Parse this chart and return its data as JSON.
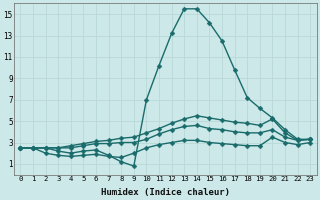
{
  "xlabel": "Humidex (Indice chaleur)",
  "bg_color": "#cce8e8",
  "line_color": "#1a6b6b",
  "markersize": 2.5,
  "linewidth": 1.0,
  "xlim": [
    -0.5,
    23.5
  ],
  "ylim": [
    0,
    16
  ],
  "yticks": [
    1,
    3,
    5,
    7,
    9,
    11,
    13,
    15
  ],
  "xticks": [
    0,
    1,
    2,
    3,
    4,
    5,
    6,
    7,
    8,
    9,
    10,
    11,
    12,
    13,
    14,
    15,
    16,
    17,
    18,
    19,
    20,
    21,
    22,
    23
  ],
  "series": [
    [
      2.5,
      2.5,
      2.5,
      2.2,
      2.0,
      2.2,
      2.3,
      1.8,
      1.2,
      0.8,
      7.0,
      10.2,
      13.2,
      15.5,
      15.5,
      14.2,
      12.5,
      9.8,
      7.2,
      6.2,
      5.3,
      4.2,
      3.3,
      3.3
    ],
    [
      2.5,
      2.5,
      2.0,
      1.8,
      1.7,
      1.8,
      1.9,
      1.7,
      1.6,
      2.0,
      2.5,
      2.8,
      3.0,
      3.2,
      3.2,
      3.0,
      2.9,
      2.8,
      2.7,
      2.7,
      3.5,
      3.0,
      2.8,
      3.0
    ],
    [
      2.5,
      2.5,
      2.5,
      2.5,
      2.5,
      2.7,
      2.9,
      2.9,
      3.0,
      3.0,
      3.3,
      3.8,
      4.2,
      4.5,
      4.6,
      4.3,
      4.2,
      4.0,
      3.9,
      3.9,
      4.2,
      3.5,
      3.2,
      3.3
    ],
    [
      2.5,
      2.5,
      2.5,
      2.5,
      2.7,
      2.9,
      3.1,
      3.2,
      3.4,
      3.5,
      3.9,
      4.3,
      4.8,
      5.2,
      5.5,
      5.3,
      5.1,
      4.9,
      4.8,
      4.6,
      5.2,
      3.9,
      3.2,
      3.3
    ]
  ]
}
